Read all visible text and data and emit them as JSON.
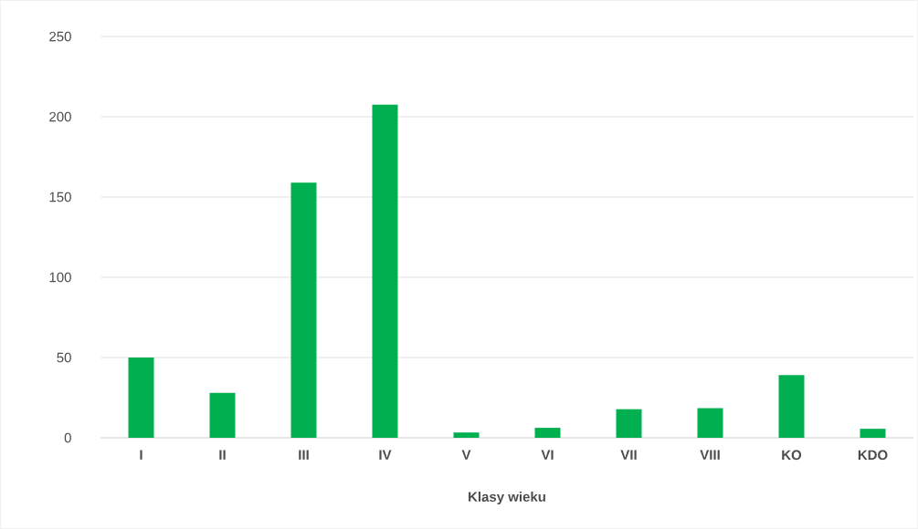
{
  "chart_data": {
    "type": "bar",
    "xlabel": "Klasy wieku",
    "categories": [
      "I",
      "II",
      "III",
      "IV",
      "V",
      "VI",
      "VII",
      "VIII",
      "KO",
      "KDO"
    ],
    "values": [
      50,
      28,
      159,
      207.5,
      3.3,
      6.2,
      17.8,
      18.4,
      39.1,
      5.6
    ],
    "color": "#00b050",
    "ylim": [
      0,
      250
    ],
    "yticks": [
      0,
      50,
      100,
      150,
      200,
      250
    ],
    "grid": "y"
  }
}
